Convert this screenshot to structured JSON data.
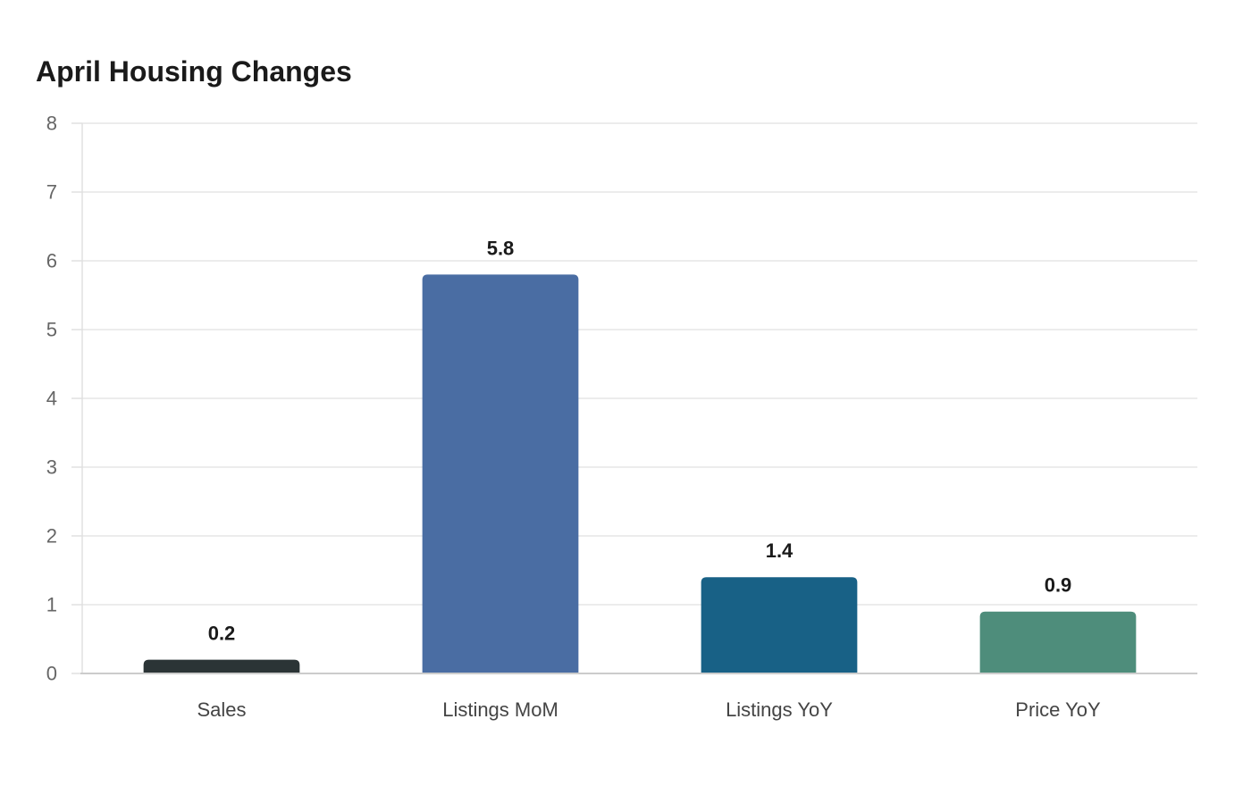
{
  "chart_data": {
    "type": "bar",
    "title": "April Housing Changes",
    "xlabel": "",
    "ylabel": "",
    "categories": [
      "Sales",
      "Listings MoM",
      "Listings YoY",
      "Price YoY"
    ],
    "values": [
      0.2,
      5.8,
      1.4,
      0.9
    ],
    "colors": [
      "#2b3436",
      "#4a6da3",
      "#186186",
      "#4e8d7b"
    ],
    "ylim": [
      0,
      8
    ],
    "yticks": [
      0,
      1,
      2,
      3,
      4,
      5,
      6,
      7,
      8
    ],
    "grid": true,
    "legend": "none"
  }
}
